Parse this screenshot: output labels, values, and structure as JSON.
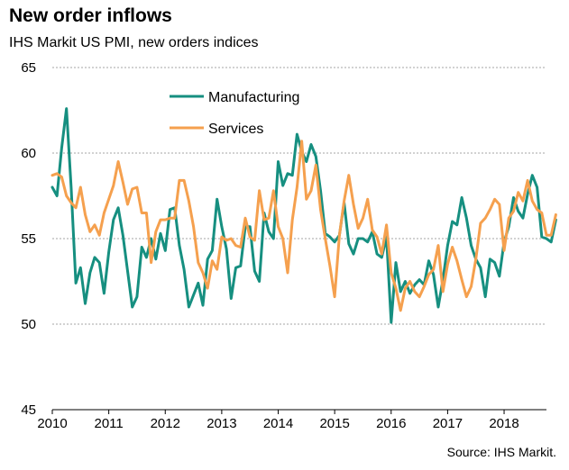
{
  "title": "New order inflows",
  "subtitle": "IHS Markit  US PMI, new orders indices",
  "source": "Source: IHS Markit.",
  "colors": {
    "manufacturing": "#168f80",
    "services": "#f5a04e",
    "grid": "#a6a6a6",
    "axis": "#000000"
  },
  "chart_data": {
    "type": "line",
    "title": "New order inflows",
    "subtitle": "IHS Markit  US PMI, new orders indices",
    "xlabel": "",
    "ylabel": "",
    "ylim": [
      45,
      65
    ],
    "yticks": [
      45,
      50,
      55,
      60,
      65
    ],
    "xlim": [
      2010.0,
      2018.75
    ],
    "xticks": [
      "2010",
      "2011",
      "2012",
      "2013",
      "2014",
      "2015",
      "2016",
      "2017",
      "2018"
    ],
    "grid": "horizontal dashed",
    "legend": "top-left",
    "series": [
      {
        "name": "Manufacturing",
        "color": "#168f80",
        "start": "2010-01",
        "values": [
          58.0,
          57.5,
          60.3,
          62.6,
          58.0,
          52.4,
          53.3,
          51.2,
          53.0,
          53.9,
          53.6,
          51.8,
          54.2,
          56.1,
          56.8,
          55.2,
          53.1,
          51.0,
          51.6,
          54.5,
          53.9,
          55.0,
          53.8,
          55.3,
          54.3,
          56.7,
          56.8,
          54.6,
          53.2,
          51.0,
          51.7,
          52.4,
          51.1,
          53.8,
          54.3,
          57.3,
          55.7,
          54.4,
          51.5,
          53.3,
          53.4,
          55.7,
          55.7,
          53.1,
          52.5,
          56.5,
          55.4,
          55.0,
          59.5,
          58.1,
          58.8,
          58.7,
          61.1,
          60.1,
          59.5,
          60.5,
          59.8,
          57.8,
          55.3,
          55.1,
          54.8,
          55.2,
          57.1,
          54.7,
          54.1,
          55.0,
          55.0,
          54.8,
          55.4,
          54.1,
          53.9,
          55.1,
          50.1,
          53.6,
          51.9,
          52.5,
          51.8,
          52.3,
          52.6,
          52.3,
          53.7,
          52.9,
          51.0,
          52.6,
          54.6,
          56.0,
          55.8,
          57.4,
          56.2,
          54.6,
          53.8,
          53.3,
          51.6,
          53.8,
          53.6,
          52.8,
          54.8,
          55.7,
          57.4,
          56.6,
          56.2,
          57.6,
          58.7,
          58.0,
          55.1,
          55.0,
          54.8,
          56.1
        ]
      },
      {
        "name": "Services",
        "color": "#f5a04e",
        "start": "2010-01",
        "values": [
          58.7,
          58.8,
          58.6,
          57.5,
          57.1,
          56.8,
          58.0,
          56.4,
          55.4,
          55.8,
          55.2,
          56.5,
          57.3,
          58.1,
          59.5,
          58.3,
          57.0,
          57.9,
          58.0,
          56.5,
          56.5,
          53.6,
          55.4,
          56.1,
          56.1,
          56.2,
          56.2,
          58.4,
          58.4,
          57.2,
          55.7,
          53.6,
          53.0,
          52.1,
          53.7,
          53.2,
          55.1,
          54.9,
          55.0,
          54.6,
          54.5,
          56.2,
          55.1,
          54.9,
          57.8,
          56.1,
          56.2,
          57.8,
          55.7,
          55.0,
          53.0,
          56.1,
          58.0,
          60.7,
          57.3,
          57.8,
          59.3,
          56.7,
          55.0,
          53.4,
          51.6,
          55.2,
          57.2,
          58.7,
          57.0,
          55.6,
          56.2,
          57.3,
          55.5,
          55.1,
          54.1,
          55.8,
          53.0,
          52.1,
          50.8,
          52.1,
          52.5,
          51.9,
          51.6,
          52.2,
          52.9,
          53.2,
          54.6,
          51.9,
          53.5,
          54.5,
          53.7,
          52.6,
          51.6,
          52.2,
          53.8,
          55.9,
          56.2,
          56.7,
          57.3,
          57.0,
          54.3,
          56.2,
          56.6,
          57.7,
          57.2,
          58.4,
          57.2,
          56.7,
          56.5,
          55.2,
          55.2,
          56.4
        ]
      }
    ]
  }
}
